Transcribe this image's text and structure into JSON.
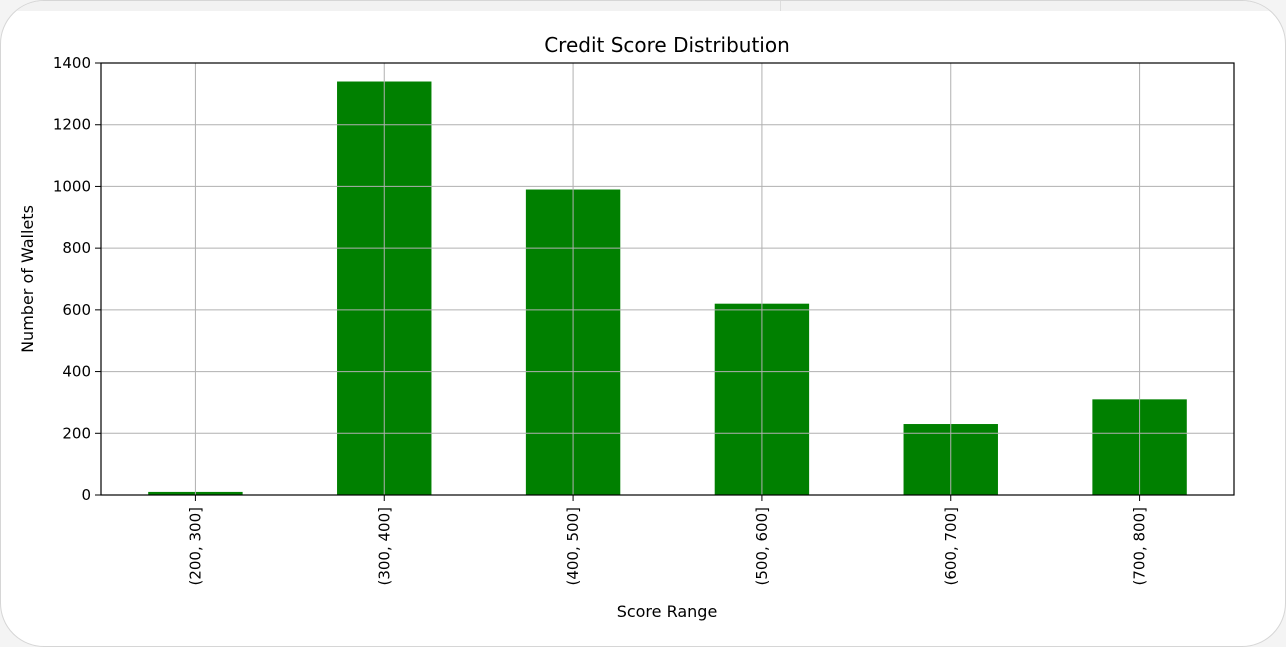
{
  "colors": {
    "bar": "#008000",
    "grid": "#b0b0b0",
    "axis": "#000000",
    "background": "#ffffff"
  },
  "chart_data": {
    "type": "bar",
    "title": "Credit Score Distribution",
    "xlabel": "Score Range",
    "ylabel": "Number of Wallets",
    "categories": [
      "(200, 300]",
      "(300, 400]",
      "(400, 500]",
      "(500, 600]",
      "(600, 700]",
      "(700, 800]"
    ],
    "values": [
      10,
      1340,
      990,
      620,
      230,
      310
    ],
    "ylim": [
      0,
      1400
    ],
    "yticks": [
      0,
      200,
      400,
      600,
      800,
      1000,
      1200,
      1400
    ],
    "grid": true,
    "legend": "none"
  }
}
